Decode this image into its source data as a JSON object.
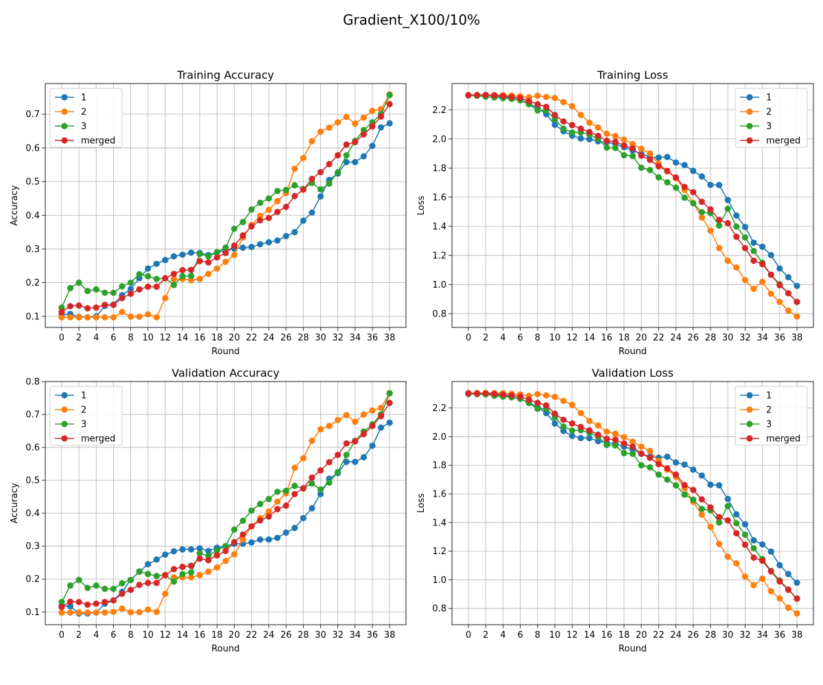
{
  "figure": {
    "suptitle": "Gradient_X100/10%"
  },
  "chart_data": [
    {
      "type": "line",
      "title": "Training Accuracy",
      "xlabel": "Round",
      "ylabel": "Accuracy",
      "x": [
        0,
        1,
        2,
        3,
        4,
        5,
        6,
        7,
        8,
        9,
        10,
        11,
        12,
        13,
        14,
        15,
        16,
        17,
        18,
        19,
        20,
        21,
        22,
        23,
        24,
        25,
        26,
        27,
        28,
        29,
        30,
        31,
        32,
        33,
        34,
        35,
        36,
        37,
        38
      ],
      "xticks": [
        "0",
        "2",
        "4",
        "6",
        "8",
        "10",
        "12",
        "14",
        "16",
        "18",
        "20",
        "22",
        "24",
        "26",
        "28",
        "30",
        "32",
        "34",
        "36",
        "38"
      ],
      "xlim": [
        -1.9,
        39.9
      ],
      "yticks": [
        "0.1",
        "0.2",
        "0.3",
        "0.4",
        "0.5",
        "0.6",
        "0.7"
      ],
      "ylim": [
        0.067,
        0.791
      ],
      "grid": true,
      "legend_position": "upper-left",
      "series": [
        {
          "name": "1",
          "color": "#1f77b4",
          "values": [
            0.105,
            0.107,
            0.098,
            0.097,
            0.1,
            0.131,
            0.135,
            0.163,
            0.181,
            0.213,
            0.242,
            0.256,
            0.267,
            0.278,
            0.283,
            0.289,
            0.288,
            0.282,
            0.29,
            0.295,
            0.301,
            0.304,
            0.306,
            0.314,
            0.32,
            0.325,
            0.338,
            0.35,
            0.384,
            0.408,
            0.456,
            0.505,
            0.524,
            0.558,
            0.558,
            0.575,
            0.606,
            0.661,
            0.673
          ]
        },
        {
          "name": "2",
          "color": "#ff7f0e",
          "values": [
            0.097,
            0.097,
            0.097,
            0.097,
            0.097,
            0.097,
            0.097,
            0.113,
            0.099,
            0.099,
            0.106,
            0.097,
            0.154,
            0.21,
            0.211,
            0.207,
            0.211,
            0.226,
            0.242,
            0.262,
            0.282,
            0.334,
            0.371,
            0.398,
            0.416,
            0.442,
            0.466,
            0.538,
            0.57,
            0.62,
            0.648,
            0.66,
            0.676,
            0.692,
            0.672,
            0.69,
            0.71,
            0.715,
            0.759
          ]
        },
        {
          "name": "3",
          "color": "#2ca02c",
          "values": [
            0.126,
            0.184,
            0.2,
            0.175,
            0.18,
            0.17,
            0.17,
            0.189,
            0.2,
            0.225,
            0.219,
            0.211,
            0.213,
            0.193,
            0.219,
            0.22,
            0.285,
            0.278,
            0.29,
            0.304,
            0.36,
            0.38,
            0.417,
            0.437,
            0.45,
            0.472,
            0.475,
            0.489,
            0.478,
            0.496,
            0.477,
            0.494,
            0.528,
            0.578,
            0.621,
            0.653,
            0.676,
            0.7,
            0.757
          ]
        },
        {
          "name": "merged",
          "color": "#d62728",
          "values": [
            0.113,
            0.13,
            0.132,
            0.124,
            0.126,
            0.134,
            0.134,
            0.154,
            0.167,
            0.18,
            0.188,
            0.188,
            0.213,
            0.226,
            0.237,
            0.238,
            0.264,
            0.26,
            0.275,
            0.288,
            0.31,
            0.34,
            0.367,
            0.385,
            0.392,
            0.41,
            0.425,
            0.457,
            0.476,
            0.508,
            0.528,
            0.552,
            0.578,
            0.61,
            0.617,
            0.64,
            0.664,
            0.693,
            0.73
          ]
        }
      ]
    },
    {
      "type": "line",
      "title": "Training Loss",
      "xlabel": "Round",
      "ylabel": "Loss",
      "x": [
        0,
        1,
        2,
        3,
        4,
        5,
        6,
        7,
        8,
        9,
        10,
        11,
        12,
        13,
        14,
        15,
        16,
        17,
        18,
        19,
        20,
        21,
        22,
        23,
        24,
        25,
        26,
        27,
        28,
        29,
        30,
        31,
        32,
        33,
        34,
        35,
        36,
        37,
        38
      ],
      "xticks": [
        "0",
        "2",
        "4",
        "6",
        "8",
        "10",
        "12",
        "14",
        "16",
        "18",
        "20",
        "22",
        "24",
        "26",
        "28",
        "30",
        "32",
        "34",
        "36",
        "38"
      ],
      "xlim": [
        -1.9,
        39.9
      ],
      "yticks": [
        "0.8",
        "1.0",
        "1.2",
        "1.4",
        "1.6",
        "1.8",
        "2.0",
        "2.2"
      ],
      "ylim": [
        0.705,
        2.38
      ],
      "grid": true,
      "legend_position": "upper-right",
      "series": [
        {
          "name": "1",
          "color": "#1f77b4",
          "values": [
            2.3,
            2.3,
            2.3,
            2.295,
            2.288,
            2.28,
            2.268,
            2.244,
            2.211,
            2.17,
            2.097,
            2.053,
            2.023,
            2.003,
            1.998,
            1.983,
            1.977,
            1.964,
            1.943,
            1.92,
            1.898,
            1.875,
            1.872,
            1.876,
            1.838,
            1.82,
            1.78,
            1.742,
            1.684,
            1.683,
            1.58,
            1.473,
            1.395,
            1.287,
            1.259,
            1.202,
            1.11,
            1.05,
            0.99
          ]
        },
        {
          "name": "2",
          "color": "#ff7f0e",
          "values": [
            2.302,
            2.302,
            2.302,
            2.302,
            2.301,
            2.298,
            2.293,
            2.286,
            2.296,
            2.288,
            2.281,
            2.253,
            2.225,
            2.165,
            2.112,
            2.078,
            2.035,
            2.02,
            1.995,
            1.965,
            1.932,
            1.9,
            1.83,
            1.778,
            1.73,
            1.65,
            1.56,
            1.46,
            1.37,
            1.25,
            1.163,
            1.117,
            1.03,
            0.97,
            1.018,
            0.937,
            0.88,
            0.82,
            0.78
          ]
        },
        {
          "name": "3",
          "color": "#2ca02c",
          "values": [
            2.298,
            2.296,
            2.29,
            2.285,
            2.28,
            2.275,
            2.265,
            2.238,
            2.196,
            2.196,
            2.136,
            2.07,
            2.044,
            2.045,
            2.03,
            2.0,
            1.94,
            1.938,
            1.888,
            1.882,
            1.802,
            1.786,
            1.736,
            1.702,
            1.665,
            1.596,
            1.557,
            1.497,
            1.49,
            1.405,
            1.52,
            1.398,
            1.323,
            1.23,
            1.149,
            1.067,
            1.002,
            0.94,
            0.88
          ]
        },
        {
          "name": "merged",
          "color": "#d62728",
          "values": [
            2.3,
            2.301,
            2.302,
            2.298,
            2.295,
            2.288,
            2.28,
            2.26,
            2.238,
            2.22,
            2.165,
            2.12,
            2.095,
            2.07,
            2.047,
            2.021,
            1.987,
            1.98,
            1.955,
            1.934,
            1.885,
            1.856,
            1.812,
            1.78,
            1.735,
            1.67,
            1.634,
            1.568,
            1.516,
            1.444,
            1.421,
            1.328,
            1.25,
            1.163,
            1.14,
            1.067,
            0.995,
            0.94,
            0.88
          ]
        }
      ]
    },
    {
      "type": "line",
      "title": "Validation Accuracy",
      "xlabel": "Round",
      "ylabel": "Accuracy",
      "x": [
        0,
        1,
        2,
        3,
        4,
        5,
        6,
        7,
        8,
        9,
        10,
        11,
        12,
        13,
        14,
        15,
        16,
        17,
        18,
        19,
        20,
        21,
        22,
        23,
        24,
        25,
        26,
        27,
        28,
        29,
        30,
        31,
        32,
        33,
        34,
        35,
        36,
        37,
        38
      ],
      "xticks": [
        "0",
        "2",
        "4",
        "6",
        "8",
        "10",
        "12",
        "14",
        "16",
        "18",
        "20",
        "22",
        "24",
        "26",
        "28",
        "30",
        "32",
        "34",
        "36",
        "38"
      ],
      "xlim": [
        -1.9,
        39.9
      ],
      "yticks": [
        "0.1",
        "0.2",
        "0.3",
        "0.4",
        "0.5",
        "0.6",
        "0.7",
        "0.8"
      ],
      "ylim": [
        0.061,
        0.8
      ],
      "grid": true,
      "legend_position": "upper-left",
      "series": [
        {
          "name": "1",
          "color": "#1f77b4",
          "values": [
            0.118,
            0.117,
            0.095,
            0.095,
            0.098,
            0.125,
            0.135,
            0.161,
            0.197,
            0.222,
            0.245,
            0.259,
            0.274,
            0.284,
            0.29,
            0.29,
            0.293,
            0.285,
            0.295,
            0.3,
            0.307,
            0.307,
            0.311,
            0.32,
            0.32,
            0.325,
            0.341,
            0.355,
            0.385,
            0.415,
            0.458,
            0.505,
            0.522,
            0.556,
            0.556,
            0.57,
            0.605,
            0.66,
            0.675
          ]
        },
        {
          "name": "2",
          "color": "#ff7f0e",
          "values": [
            0.098,
            0.098,
            0.098,
            0.098,
            0.098,
            0.098,
            0.1,
            0.11,
            0.099,
            0.099,
            0.107,
            0.1,
            0.155,
            0.205,
            0.205,
            0.205,
            0.212,
            0.222,
            0.235,
            0.255,
            0.275,
            0.32,
            0.36,
            0.385,
            0.405,
            0.435,
            0.46,
            0.538,
            0.567,
            0.62,
            0.655,
            0.665,
            0.683,
            0.698,
            0.678,
            0.7,
            0.712,
            0.72,
            0.765
          ]
        },
        {
          "name": "3",
          "color": "#2ca02c",
          "values": [
            0.13,
            0.18,
            0.197,
            0.173,
            0.18,
            0.17,
            0.17,
            0.187,
            0.197,
            0.223,
            0.215,
            0.209,
            0.212,
            0.192,
            0.215,
            0.22,
            0.278,
            0.27,
            0.287,
            0.3,
            0.35,
            0.377,
            0.408,
            0.428,
            0.443,
            0.465,
            0.468,
            0.483,
            0.475,
            0.49,
            0.472,
            0.493,
            0.525,
            0.577,
            0.62,
            0.648,
            0.67,
            0.7,
            0.764
          ]
        },
        {
          "name": "merged",
          "color": "#d62728",
          "values": [
            0.115,
            0.131,
            0.13,
            0.122,
            0.125,
            0.13,
            0.135,
            0.155,
            0.167,
            0.182,
            0.188,
            0.188,
            0.212,
            0.23,
            0.237,
            0.24,
            0.262,
            0.257,
            0.272,
            0.285,
            0.312,
            0.335,
            0.36,
            0.378,
            0.39,
            0.412,
            0.423,
            0.458,
            0.476,
            0.508,
            0.53,
            0.555,
            0.577,
            0.612,
            0.618,
            0.64,
            0.665,
            0.695,
            0.735
          ]
        }
      ]
    },
    {
      "type": "line",
      "title": "Validation Loss",
      "xlabel": "Round",
      "ylabel": "Loss",
      "x": [
        0,
        1,
        2,
        3,
        4,
        5,
        6,
        7,
        8,
        9,
        10,
        11,
        12,
        13,
        14,
        15,
        16,
        17,
        18,
        19,
        20,
        21,
        22,
        23,
        24,
        25,
        26,
        27,
        28,
        29,
        30,
        31,
        32,
        33,
        34,
        35,
        36,
        37,
        38
      ],
      "xticks": [
        "0",
        "2",
        "4",
        "6",
        "8",
        "10",
        "12",
        "14",
        "16",
        "18",
        "20",
        "22",
        "24",
        "26",
        "28",
        "30",
        "32",
        "34",
        "36",
        "38"
      ],
      "xlim": [
        -1.9,
        39.9
      ],
      "yticks": [
        "0.8",
        "1.0",
        "1.2",
        "1.4",
        "1.6",
        "1.8",
        "2.0",
        "2.2"
      ],
      "ylim": [
        0.686,
        2.385
      ],
      "grid": true,
      "legend_position": "upper-right",
      "series": [
        {
          "name": "1",
          "color": "#1f77b4",
          "values": [
            2.298,
            2.298,
            2.298,
            2.293,
            2.288,
            2.278,
            2.265,
            2.238,
            2.205,
            2.165,
            2.092,
            2.04,
            2.005,
            1.99,
            1.99,
            1.968,
            1.958,
            1.95,
            1.93,
            1.91,
            1.88,
            1.86,
            1.853,
            1.86,
            1.82,
            1.805,
            1.77,
            1.728,
            1.665,
            1.66,
            1.565,
            1.457,
            1.388,
            1.276,
            1.247,
            1.197,
            1.102,
            1.04,
            0.98
          ]
        },
        {
          "name": "2",
          "color": "#ff7f0e",
          "values": [
            2.305,
            2.305,
            2.305,
            2.305,
            2.303,
            2.3,
            2.294,
            2.285,
            2.297,
            2.288,
            2.278,
            2.25,
            2.223,
            2.165,
            2.11,
            2.078,
            2.035,
            2.02,
            1.997,
            1.965,
            1.93,
            1.9,
            1.83,
            1.77,
            1.72,
            1.64,
            1.545,
            1.455,
            1.37,
            1.25,
            1.162,
            1.115,
            1.022,
            0.962,
            1.008,
            0.92,
            0.87,
            0.805,
            0.765
          ]
        },
        {
          "name": "3",
          "color": "#2ca02c",
          "values": [
            2.3,
            2.297,
            2.295,
            2.285,
            2.28,
            2.275,
            2.265,
            2.235,
            2.195,
            2.195,
            2.135,
            2.07,
            2.043,
            2.045,
            2.028,
            2.0,
            1.942,
            1.938,
            1.885,
            1.88,
            1.8,
            1.785,
            1.735,
            1.7,
            1.66,
            1.595,
            1.56,
            1.495,
            1.485,
            1.4,
            1.515,
            1.395,
            1.315,
            1.22,
            1.145,
            1.062,
            0.995,
            0.932,
            0.87
          ]
        },
        {
          "name": "merged",
          "color": "#d62728",
          "values": [
            2.302,
            2.302,
            2.302,
            2.298,
            2.294,
            2.288,
            2.28,
            2.258,
            2.236,
            2.218,
            2.16,
            2.118,
            2.092,
            2.068,
            2.044,
            2.014,
            1.985,
            1.978,
            1.952,
            1.93,
            1.882,
            1.852,
            1.808,
            1.778,
            1.735,
            1.662,
            1.628,
            1.562,
            1.506,
            1.438,
            1.415,
            1.325,
            1.245,
            1.155,
            1.133,
            1.058,
            0.988,
            0.93,
            0.868
          ]
        }
      ]
    }
  ]
}
